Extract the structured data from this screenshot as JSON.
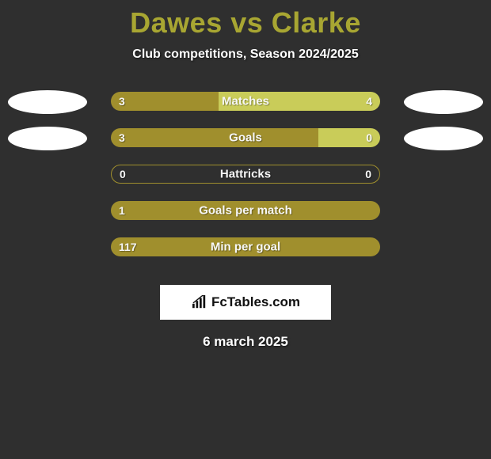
{
  "title": "Dawes vs Clarke",
  "subtitle": "Club competitions, Season 2024/2025",
  "date": "6 march 2025",
  "colors": {
    "background": "#2f2f2f",
    "title": "#a8a632",
    "text": "#ffffff",
    "bar_dark": "#a08f2d",
    "bar_light": "#c9cc59",
    "badge": "#ffffff",
    "logo_bg": "#ffffff",
    "logo_text": "#111111"
  },
  "layout": {
    "bar_track_width": 340,
    "bar_track_height": 24,
    "bar_radius": 12,
    "badge_width": 100,
    "badge_height": 30
  },
  "logo": {
    "text": "FcTables.com"
  },
  "rows": [
    {
      "label": "Matches",
      "left_value": "3",
      "right_value": "4",
      "left_pct": 40,
      "right_pct": 60,
      "show_left_badge": true,
      "show_right_badge": true
    },
    {
      "label": "Goals",
      "left_value": "3",
      "right_value": "0",
      "left_pct": 77,
      "right_pct": 23,
      "show_left_badge": true,
      "show_right_badge": true
    },
    {
      "label": "Hattricks",
      "left_value": "0",
      "right_value": "0",
      "left_pct": 0,
      "right_pct": 0,
      "show_left_badge": false,
      "show_right_badge": false
    },
    {
      "label": "Goals per match",
      "left_value": "1",
      "right_value": "",
      "left_pct": 100,
      "right_pct": 0,
      "show_left_badge": false,
      "show_right_badge": false
    },
    {
      "label": "Min per goal",
      "left_value": "117",
      "right_value": "",
      "left_pct": 100,
      "right_pct": 0,
      "show_left_badge": false,
      "show_right_badge": false
    }
  ]
}
